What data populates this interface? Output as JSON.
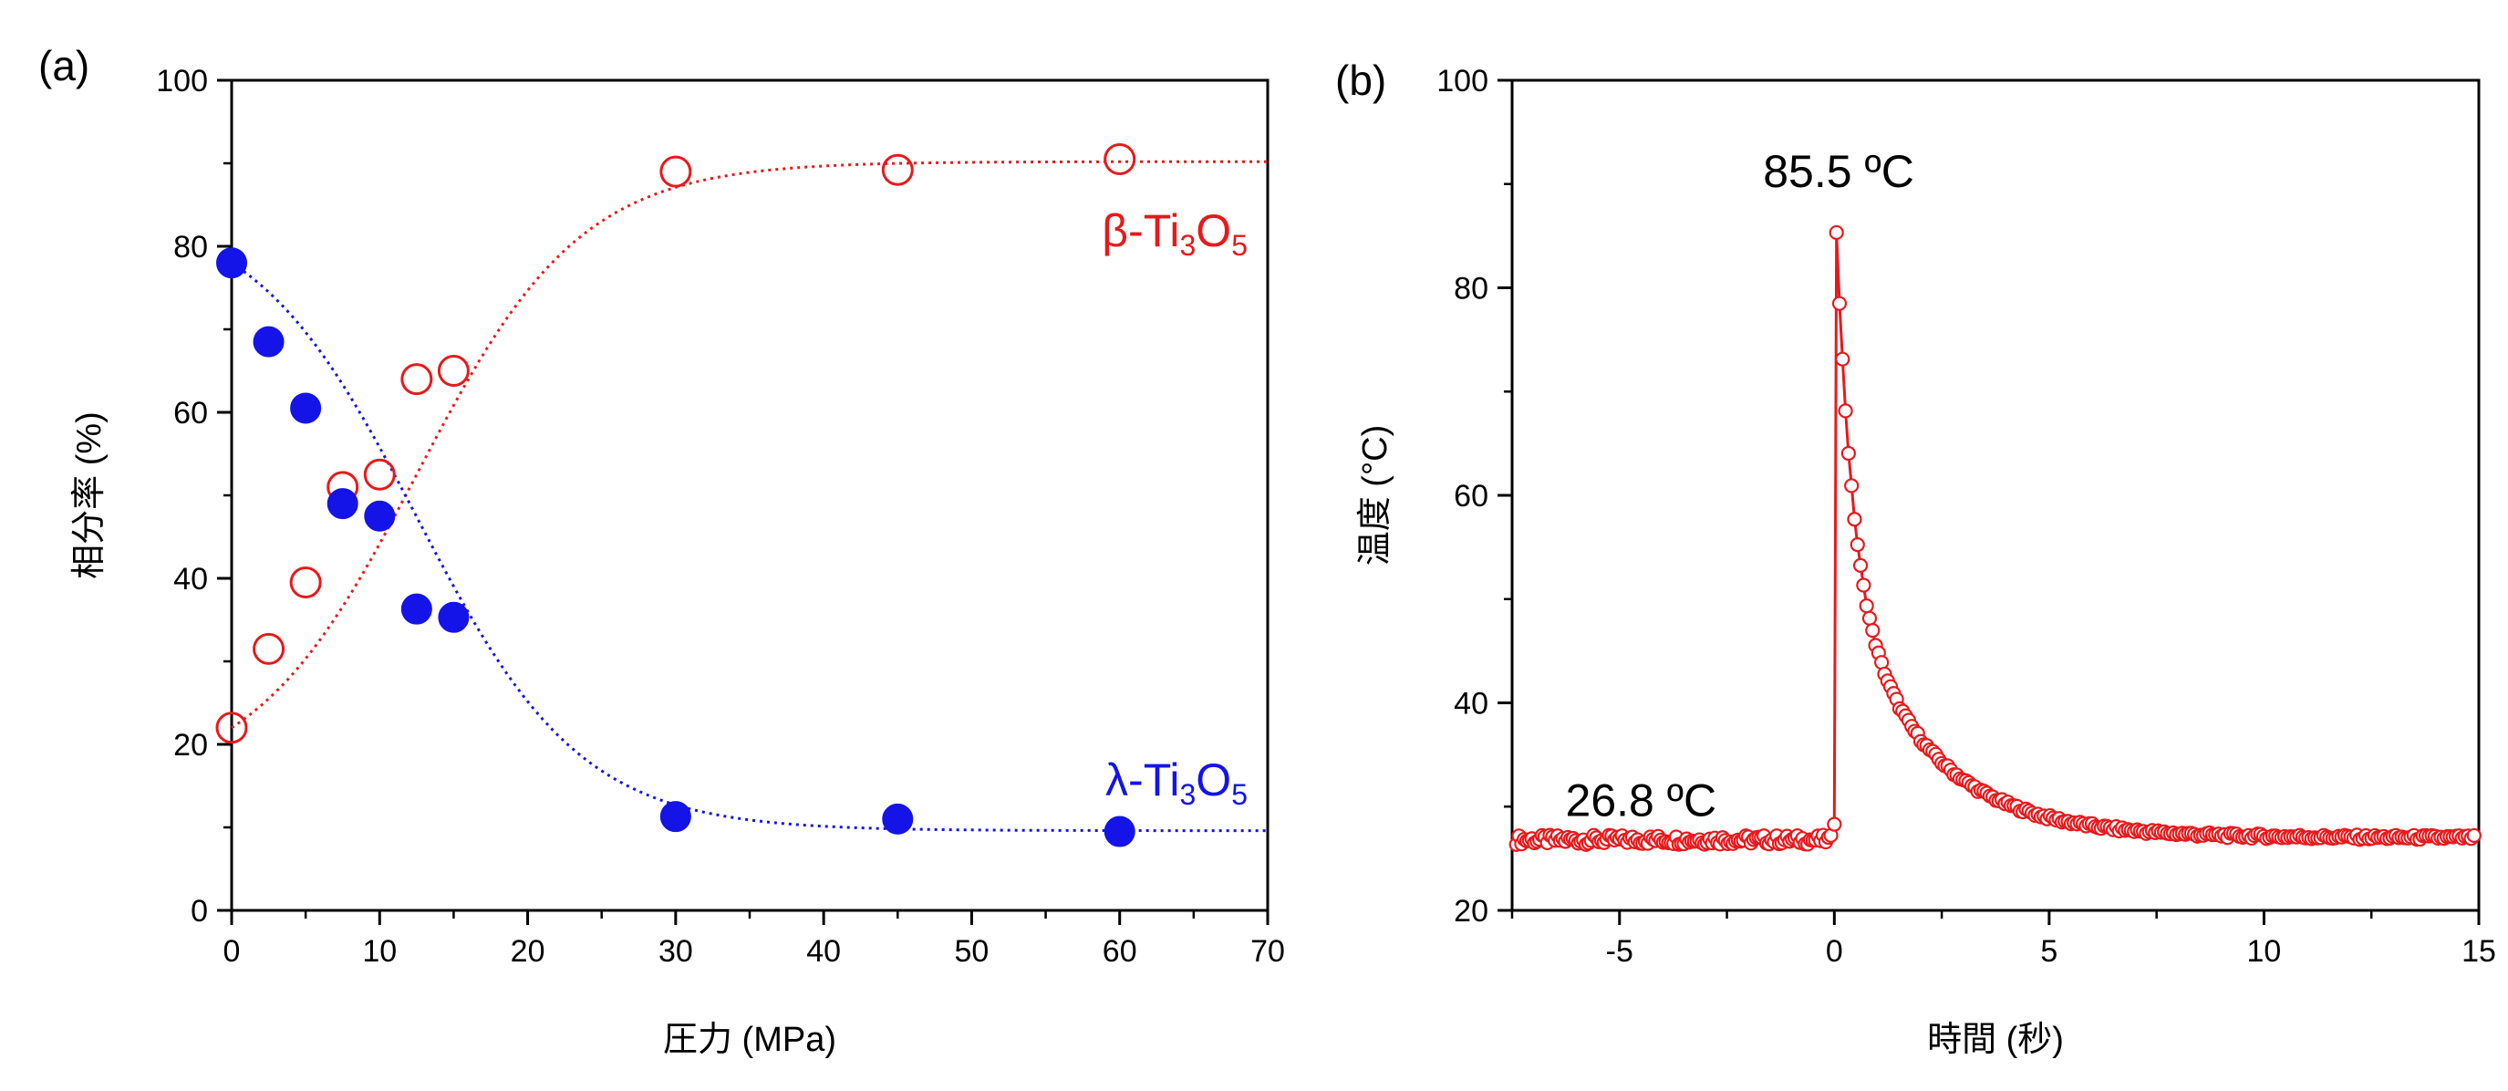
{
  "chart_data": [
    {
      "panel_label": "(a)",
      "type": "scatter",
      "xlabel": "圧力 (MPa)",
      "ylabel": "相分率 (%)",
      "xlim": [
        0,
        70
      ],
      "ylim": [
        0,
        100
      ],
      "xticks": [
        "0",
        "10",
        "20",
        "30",
        "40",
        "50",
        "60",
        "70"
      ],
      "yticks": [
        "0",
        "20",
        "40",
        "60",
        "80",
        "100"
      ],
      "series": [
        {
          "name_main": "β-Ti",
          "name_sub1": "3",
          "name_mid": "O",
          "name_sub2": "5",
          "color": "#e8191c",
          "marker": "open-circle",
          "x": [
            0,
            2.5,
            5,
            7.5,
            10,
            12.5,
            15,
            30,
            45,
            60
          ],
          "y": [
            22,
            31.5,
            39.5,
            51,
            52.5,
            64,
            65,
            89,
            89.2,
            90.5
          ],
          "fit_asymptote": 90.2
        },
        {
          "name_main": "λ-Ti",
          "name_sub1": "3",
          "name_mid": "O",
          "name_sub2": "5",
          "color": "#1414e8",
          "marker": "filled-circle",
          "x": [
            0,
            2.5,
            5,
            7.5,
            10,
            12.5,
            15,
            30,
            45,
            60
          ],
          "y": [
            78,
            68.5,
            60.5,
            49,
            47.5,
            36.3,
            35.3,
            11.3,
            11,
            9.5
          ],
          "fit_asymptote": 9.6
        }
      ],
      "grid": false
    },
    {
      "panel_label": "(b)",
      "type": "line",
      "xlabel": "時間 (秒)",
      "ylabel": "温度 (°C)",
      "xlim": [
        -7.5,
        15
      ],
      "ylim": [
        20,
        100
      ],
      "xticks": [
        "-5",
        "0",
        "5",
        "10",
        "15"
      ],
      "yticks": [
        "20",
        "40",
        "60",
        "80",
        "100"
      ],
      "color": "#e8191c",
      "marker": "open-circle",
      "baseline_temp": 26.8,
      "peak_temp": 85.5,
      "peak_time": 0.05,
      "final_temp": 27.0,
      "annotations": [
        {
          "text": "85.5 ºC",
          "x": 0.1,
          "y": 85.5
        },
        {
          "text": "26.8 ºC",
          "x": -4.5,
          "y": 26.8
        }
      ],
      "grid": false
    }
  ]
}
